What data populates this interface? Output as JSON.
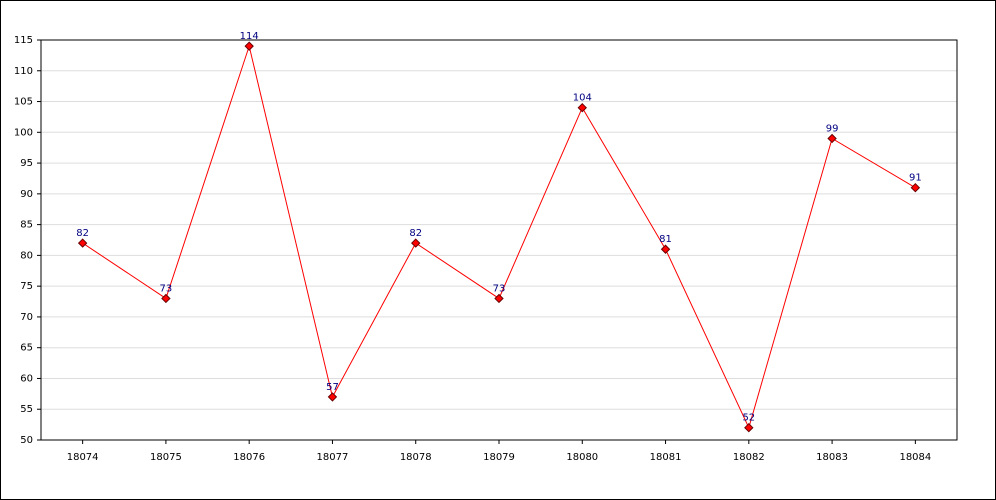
{
  "chart_data": {
    "type": "line",
    "categories": [
      "18074",
      "18075",
      "18076",
      "18077",
      "18078",
      "18079",
      "18080",
      "18081",
      "18082",
      "18083",
      "18084"
    ],
    "series": [
      {
        "color": "#ff0000",
        "values": [
          82,
          73,
          114,
          57,
          82,
          73,
          104,
          81,
          52,
          99,
          91
        ]
      }
    ],
    "ylim": [
      50,
      115
    ],
    "yticks": [
      50,
      55,
      60,
      65,
      70,
      75,
      80,
      85,
      90,
      95,
      100,
      105,
      110,
      115
    ],
    "grid": true
  }
}
